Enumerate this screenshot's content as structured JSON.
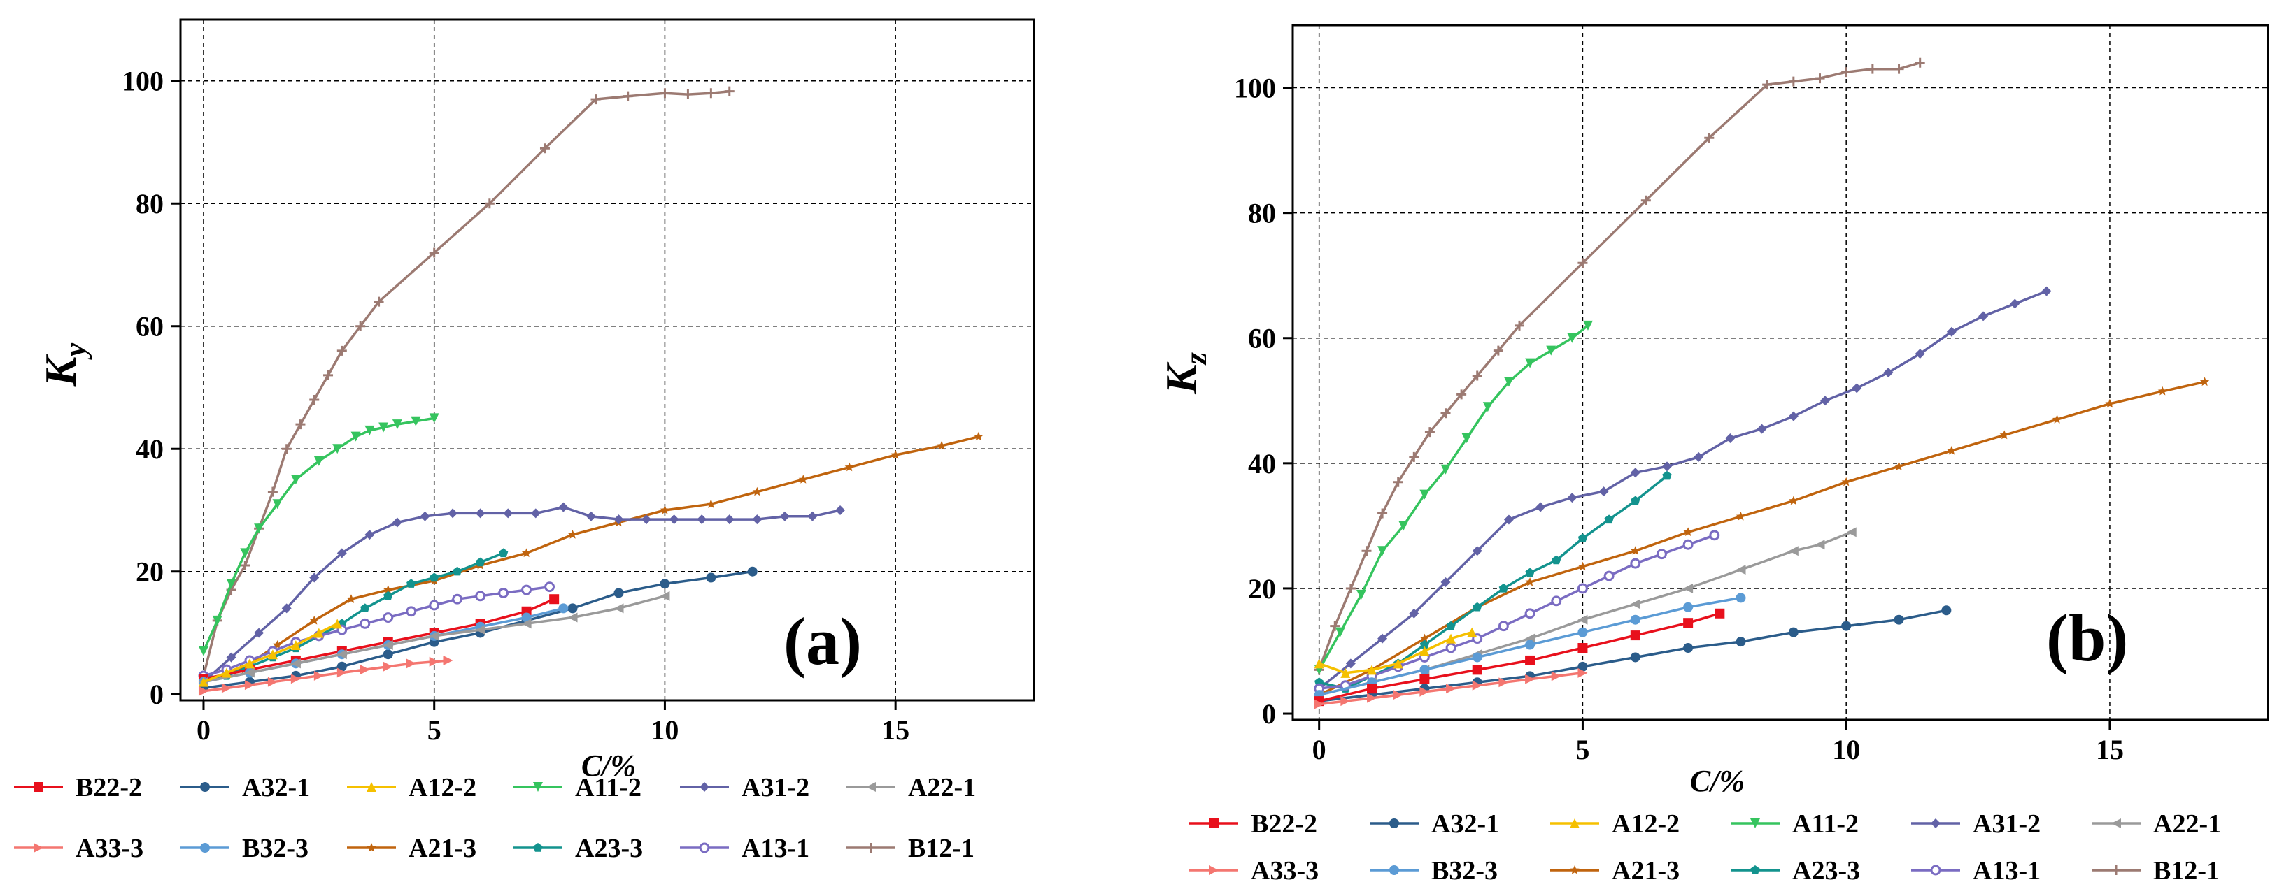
{
  "colors": {
    "B22-2": "#e8101c",
    "A32-1": "#2b5c8a",
    "A12-2": "#f5c000",
    "A11-2": "#35c45e",
    "A31-2": "#6262a6",
    "A22-1": "#9a9a9a",
    "A33-3": "#f47670",
    "B32-3": "#5b9bd5",
    "A21-3": "#c0640e",
    "A23-3": "#13938e",
    "A13-1": "#7a6cc2",
    "B12-1": "#9c7a72"
  },
  "chart_data": [
    {
      "type": "line",
      "title": "",
      "panel_label": "(a)",
      "ylabel_main": "K",
      "ylabel_sub": "y",
      "xlabel": "C/%",
      "xlim": [
        -0.5,
        18
      ],
      "ylim": [
        -1,
        110
      ],
      "xticks": [
        "0",
        "5",
        "10",
        "15"
      ],
      "yticks": [
        "0",
        "20",
        "40",
        "60",
        "80",
        "100"
      ],
      "grid": true,
      "series": [
        {
          "name": "B12-1",
          "marker": "plus",
          "x": [
            0,
            0.3,
            0.6,
            0.9,
            1.2,
            1.5,
            1.8,
            2.1,
            2.4,
            2.7,
            3.0,
            3.4,
            3.8,
            5.0,
            6.2,
            7.4,
            8.5,
            9.2,
            10.0,
            10.5,
            11.0,
            11.4
          ],
          "y": [
            3,
            12,
            17,
            21,
            27,
            33,
            40,
            44,
            48,
            52,
            56,
            60,
            64,
            72,
            80,
            89,
            97,
            97.5,
            98,
            97.8,
            98,
            98.3
          ]
        },
        {
          "name": "A11-2",
          "marker": "tri-down",
          "x": [
            0,
            0.3,
            0.6,
            0.9,
            1.2,
            1.6,
            2.0,
            2.5,
            2.9,
            3.3,
            3.6,
            3.9,
            4.2,
            4.6,
            5.0
          ],
          "y": [
            7,
            12,
            18,
            23,
            27,
            31,
            35,
            38,
            40,
            42,
            43,
            43.5,
            44,
            44.5,
            45
          ]
        },
        {
          "name": "A21-3",
          "marker": "star",
          "x": [
            0,
            0.8,
            1.6,
            2.4,
            3.2,
            4.0,
            5.0,
            6.0,
            7.0,
            8.0,
            9.0,
            10.0,
            11.0,
            12.0,
            13.0,
            14.0,
            15.0,
            16.0,
            16.8
          ],
          "y": [
            2,
            4,
            8,
            12,
            15.5,
            17,
            18.5,
            21,
            23,
            26,
            28,
            30,
            31,
            33,
            35,
            37,
            39,
            40.5,
            42
          ]
        },
        {
          "name": "A31-2",
          "marker": "diamond",
          "x": [
            0,
            0.6,
            1.2,
            1.8,
            2.4,
            3.0,
            3.6,
            4.2,
            4.8,
            5.4,
            6.0,
            6.6,
            7.2,
            7.8,
            8.4,
            9.0,
            9.6,
            10.2,
            10.8,
            11.4,
            12.0,
            12.6,
            13.2,
            13.8
          ],
          "y": [
            2,
            6,
            10,
            14,
            19,
            23,
            26,
            28,
            29,
            29.5,
            29.5,
            29.5,
            29.5,
            30.5,
            29,
            28.5,
            28.5,
            28.5,
            28.5,
            28.5,
            28.5,
            29,
            29,
            30
          ]
        },
        {
          "name": "A23-3",
          "marker": "pentagon",
          "x": [
            0,
            0.5,
            1.0,
            1.5,
            2.0,
            2.5,
            3.0,
            3.5,
            4.0,
            4.5,
            5.0,
            5.5,
            6.0,
            6.5
          ],
          "y": [
            2.5,
            3,
            4.5,
            6,
            7.5,
            9.5,
            11.5,
            14,
            16,
            18,
            19,
            20,
            21.5,
            23
          ]
        },
        {
          "name": "A13-1",
          "marker": "circle-open",
          "x": [
            0,
            0.5,
            1.0,
            1.5,
            2.0,
            2.5,
            3.0,
            3.5,
            4.0,
            4.5,
            5.0,
            5.5,
            6.0,
            6.5,
            7.0,
            7.5
          ],
          "y": [
            3,
            4,
            5.5,
            7,
            8.5,
            9.5,
            10.5,
            11.5,
            12.5,
            13.5,
            14.5,
            15.5,
            16,
            16.5,
            17,
            17.5
          ]
        },
        {
          "name": "A32-1",
          "marker": "circle",
          "x": [
            0,
            1.0,
            2.0,
            3.0,
            4.0,
            5.0,
            6.0,
            7.0,
            8.0,
            9.0,
            10.0,
            11.0,
            11.9
          ],
          "y": [
            1,
            2,
            3,
            4.5,
            6.5,
            8.5,
            10,
            12,
            14,
            16.5,
            18,
            19,
            20
          ]
        },
        {
          "name": "B22-2",
          "marker": "square",
          "x": [
            0,
            1.0,
            2.0,
            3.0,
            4.0,
            5.0,
            6.0,
            7.0,
            7.6
          ],
          "y": [
            2.5,
            4,
            5.5,
            7,
            8.5,
            10,
            11.5,
            13.5,
            15.5
          ]
        },
        {
          "name": "B32-3",
          "marker": "circle",
          "x": [
            0,
            1.0,
            2.0,
            3.0,
            4.0,
            5.0,
            6.0,
            7.0,
            7.8
          ],
          "y": [
            2,
            3.5,
            5,
            6.5,
            8,
            9.5,
            11,
            12.5,
            14
          ]
        },
        {
          "name": "A22-1",
          "marker": "tri-left",
          "x": [
            0,
            1.0,
            2.0,
            3.0,
            4.0,
            5.0,
            6.0,
            7.0,
            8.0,
            9.0,
            10.0
          ],
          "y": [
            2,
            3.5,
            5,
            6.5,
            8,
            9.5,
            10.5,
            11.5,
            12.5,
            14,
            16
          ]
        },
        {
          "name": "A12-2",
          "marker": "tri-up",
          "x": [
            0,
            0.5,
            1.0,
            1.5,
            2.0,
            2.5,
            2.9
          ],
          "y": [
            2,
            3.5,
            5,
            6.5,
            8,
            10,
            11.5
          ]
        },
        {
          "name": "A33-3",
          "marker": "tri-right",
          "x": [
            0,
            0.5,
            1.0,
            1.5,
            2.0,
            2.5,
            3.0,
            3.5,
            4.0,
            4.5,
            5.0,
            5.3
          ],
          "y": [
            0.5,
            1,
            1.5,
            2,
            2.5,
            3,
            3.5,
            4,
            4.5,
            5,
            5.3,
            5.5
          ]
        }
      ]
    },
    {
      "type": "line",
      "title": "",
      "panel_label": "(b)",
      "ylabel_main": "K",
      "ylabel_sub": "z",
      "xlabel": "C/%",
      "xlim": [
        -0.5,
        18
      ],
      "ylim": [
        -1,
        110
      ],
      "xticks": [
        "0",
        "5",
        "10",
        "15"
      ],
      "yticks": [
        "0",
        "20",
        "40",
        "60",
        "80",
        "100"
      ],
      "grid": true,
      "series": [
        {
          "name": "B12-1",
          "marker": "plus",
          "x": [
            0,
            0.3,
            0.6,
            0.9,
            1.2,
            1.5,
            1.8,
            2.1,
            2.4,
            2.7,
            3.0,
            3.4,
            3.8,
            5.0,
            6.2,
            7.4,
            8.5,
            9.0,
            9.5,
            10.0,
            10.5,
            11.0,
            11.4
          ],
          "y": [
            7,
            14,
            20,
            26,
            32,
            37,
            41,
            45,
            48,
            51,
            54,
            58,
            62,
            72,
            82,
            92,
            100.5,
            101,
            101.5,
            102.5,
            103,
            103,
            104
          ]
        },
        {
          "name": "A11-2",
          "marker": "tri-down",
          "x": [
            0,
            0.4,
            0.8,
            1.2,
            1.6,
            2.0,
            2.4,
            2.8,
            3.2,
            3.6,
            4.0,
            4.4,
            4.8,
            5.1
          ],
          "y": [
            7,
            13,
            19,
            26,
            30,
            35,
            39,
            44,
            49,
            53,
            56,
            58,
            60,
            62
          ]
        },
        {
          "name": "A31-2",
          "marker": "diamond",
          "x": [
            0,
            0.6,
            1.2,
            1.8,
            2.4,
            3.0,
            3.6,
            4.2,
            4.8,
            5.4,
            6.0,
            6.6,
            7.2,
            7.8,
            8.4,
            9.0,
            9.6,
            10.2,
            10.8,
            11.4,
            12.0,
            12.6,
            13.2,
            13.8
          ],
          "y": [
            4,
            8,
            12,
            16,
            21,
            26,
            31,
            33,
            34.5,
            35.5,
            38.5,
            39.5,
            41,
            44,
            45.5,
            47.5,
            50,
            52,
            54.5,
            57.5,
            61,
            63.5,
            65.5,
            67.5
          ]
        },
        {
          "name": "A21-3",
          "marker": "star",
          "x": [
            0,
            1.0,
            2.0,
            3.0,
            4.0,
            5.0,
            6.0,
            7.0,
            8.0,
            9.0,
            10.0,
            11.0,
            12.0,
            13.0,
            14.0,
            15.0,
            16.0,
            16.8
          ],
          "y": [
            3,
            7,
            12,
            17,
            21,
            23.5,
            26,
            29,
            31.5,
            34,
            37,
            39.5,
            42,
            44.5,
            47,
            49.5,
            51.5,
            53
          ]
        },
        {
          "name": "A23-3",
          "marker": "pentagon",
          "x": [
            0,
            0.5,
            1.0,
            1.5,
            2.0,
            2.5,
            3.0,
            3.5,
            4.0,
            4.5,
            5.0,
            5.5,
            6.0,
            6.6
          ],
          "y": [
            5,
            4,
            6,
            8,
            11,
            14,
            17,
            20,
            22.5,
            24.5,
            28,
            31,
            34,
            38
          ]
        },
        {
          "name": "A13-1",
          "marker": "circle-open",
          "x": [
            0,
            0.5,
            1.0,
            1.5,
            2.0,
            2.5,
            3.0,
            3.5,
            4.0,
            4.5,
            5.0,
            5.5,
            6.0,
            6.5,
            7.0,
            7.5
          ],
          "y": [
            4,
            4.5,
            6,
            7.5,
            9,
            10.5,
            12,
            14,
            16,
            18,
            20,
            22,
            24,
            25.5,
            27,
            28.5
          ]
        },
        {
          "name": "A22-1",
          "marker": "tri-left",
          "x": [
            0,
            1.0,
            2.0,
            3.0,
            4.0,
            5.0,
            6.0,
            7.0,
            8.0,
            9.0,
            9.5,
            10.1
          ],
          "y": [
            3,
            5,
            7,
            9.5,
            12,
            15,
            17.5,
            20,
            23,
            26,
            27,
            29
          ]
        },
        {
          "name": "B32-3",
          "marker": "circle",
          "x": [
            0,
            1.0,
            2.0,
            3.0,
            4.0,
            5.0,
            6.0,
            7.0,
            8.0
          ],
          "y": [
            3,
            5,
            7,
            9,
            11,
            13,
            15,
            17,
            18.5
          ]
        },
        {
          "name": "A32-1",
          "marker": "circle",
          "x": [
            0,
            1.0,
            2.0,
            3.0,
            4.0,
            5.0,
            6.0,
            7.0,
            8.0,
            9.0,
            10.0,
            11.0,
            11.9
          ],
          "y": [
            2,
            3,
            4,
            5,
            6,
            7.5,
            9,
            10.5,
            11.5,
            13,
            14,
            15,
            16.5
          ]
        },
        {
          "name": "B22-2",
          "marker": "square",
          "x": [
            0,
            1.0,
            2.0,
            3.0,
            4.0,
            5.0,
            6.0,
            7.0,
            7.6
          ],
          "y": [
            2,
            4,
            5.5,
            7,
            8.5,
            10.5,
            12.5,
            14.5,
            16
          ]
        },
        {
          "name": "A12-2",
          "marker": "tri-up",
          "x": [
            0,
            0.5,
            1.0,
            1.5,
            2.0,
            2.5,
            2.9
          ],
          "y": [
            8,
            6.5,
            7,
            8,
            10,
            12,
            13
          ]
        },
        {
          "name": "A33-3",
          "marker": "tri-right",
          "x": [
            0,
            0.5,
            1.0,
            1.5,
            2.0,
            2.5,
            3.0,
            3.5,
            4.0,
            4.5,
            5.0
          ],
          "y": [
            1.5,
            2,
            2.5,
            3,
            3.5,
            4,
            4.5,
            5,
            5.5,
            6,
            6.5
          ]
        }
      ]
    }
  ],
  "legend_a": {
    "row1": [
      "B22-2",
      "A32-1",
      "A12-2",
      "A11-2",
      "A31-2",
      "A22-1"
    ],
    "row2": [
      "A33-3",
      "B32-3",
      "A21-3",
      "A23-3",
      "A13-1",
      "B12-1"
    ]
  },
  "legend_b": {
    "row1": [
      "B22-2",
      "A32-1",
      "A12-2",
      "A11-2",
      "A31-2",
      "A22-1"
    ],
    "row2": [
      "A33-3",
      "B32-3",
      "A21-3",
      "A23-3",
      "A13-1",
      "B12-1"
    ]
  }
}
